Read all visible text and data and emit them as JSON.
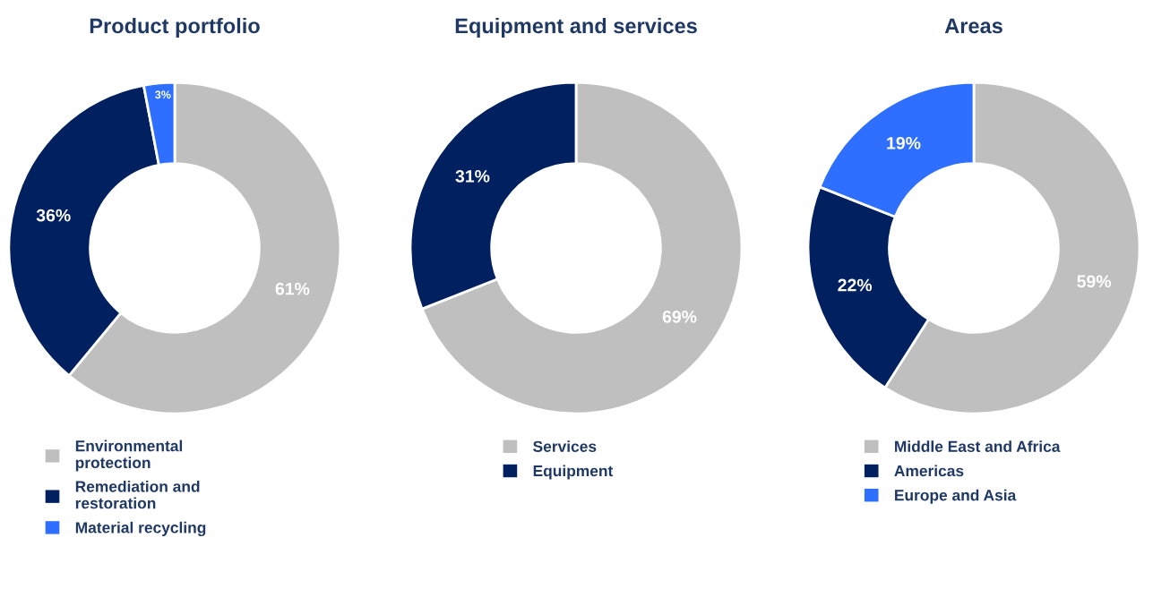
{
  "chart_data": [
    {
      "type": "donut",
      "title": "Product portfolio",
      "categories": [
        "Environmental protection",
        "Remediation and restoration",
        "Material recycling"
      ],
      "values": [
        61,
        36,
        3
      ],
      "colors": [
        "#bfbfbf",
        "#002060",
        "#2e6fff"
      ],
      "value_labels": [
        "61%",
        "36%",
        "3%"
      ],
      "legend": "bottom"
    },
    {
      "type": "donut",
      "title": "Equipment and services",
      "categories": [
        "Services",
        "Equipment"
      ],
      "values": [
        69,
        31
      ],
      "colors": [
        "#bfbfbf",
        "#002060"
      ],
      "value_labels": [
        "69%",
        "31%"
      ],
      "legend": "bottom"
    },
    {
      "type": "donut",
      "title": "Areas",
      "categories": [
        "Middle East and Africa",
        "Americas",
        "Europe and Asia"
      ],
      "values": [
        59,
        22,
        19
      ],
      "colors": [
        "#bfbfbf",
        "#002060",
        "#2e6fff"
      ],
      "value_labels": [
        "59%",
        "22%",
        "19%"
      ],
      "legend": "bottom"
    }
  ]
}
